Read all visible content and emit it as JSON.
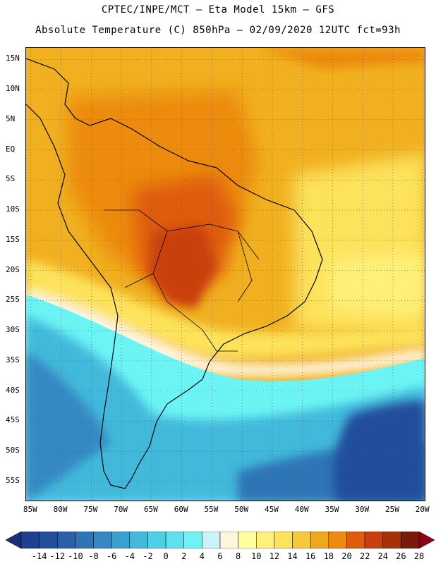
{
  "header": {
    "line1": "CPTEC/INPE/MCT –  Eta Model 15km – GFS",
    "line2": "Absolute Temperature (C) 850hPa – 02/09/2020 12UTC fct=93h"
  },
  "map": {
    "lat_labels": [
      "15N",
      "10N",
      "5N",
      "EQ",
      "5S",
      "10S",
      "15S",
      "20S",
      "25S",
      "30S",
      "35S",
      "40S",
      "45S",
      "50S",
      "55S"
    ],
    "lon_labels": [
      "85W",
      "80W",
      "75W",
      "70W",
      "65W",
      "60W",
      "55W",
      "50W",
      "45W",
      "40W",
      "35W",
      "30W",
      "25W",
      "20W"
    ],
    "lat_values": [
      15,
      10,
      5,
      0,
      -5,
      -10,
      -15,
      -20,
      -25,
      -30,
      -35,
      -40,
      -45,
      -50,
      -55
    ],
    "lon_values": [
      -85,
      -80,
      -75,
      -70,
      -65,
      -60,
      -55,
      -50,
      -45,
      -40,
      -35,
      -30,
      -25,
      -20
    ],
    "temperature_zones": [
      {
        "name": "cold-southwest",
        "value_c": -8
      },
      {
        "name": "cool-southern-ocean",
        "value_c": 0
      },
      {
        "name": "cold-deep-south",
        "value_c": -12
      },
      {
        "name": "mild-frontal-band",
        "value_c": 6
      },
      {
        "name": "warm-north",
        "value_c": 18
      },
      {
        "name": "warm-interior",
        "value_c": 20
      },
      {
        "name": "hot-core",
        "value_c": 24
      }
    ]
  },
  "colorbar": {
    "labels": [
      "-14",
      "-12",
      "-10",
      "-8",
      "-6",
      "-4",
      "-2",
      "0",
      "2",
      "4",
      "6",
      "8",
      "10",
      "12",
      "14",
      "16",
      "18",
      "20",
      "22",
      "24",
      "26",
      "28"
    ],
    "colors": [
      "#1f3f91",
      "#244d9c",
      "#2b5fa8",
      "#2f74b5",
      "#3589c2",
      "#3aa1cf",
      "#42b9db",
      "#4fcfe6",
      "#5fe0ee",
      "#6cf4f4",
      "#c8f4f8",
      "#fff4dc",
      "#ffffa0",
      "#fff07a",
      "#fde25c",
      "#f7c83e",
      "#f0a818",
      "#ec8b10",
      "#df5c0e",
      "#c9400c",
      "#a6300a",
      "#7a1a08"
    ],
    "low_arrow_color": "#1a2f78",
    "high_arrow_color": "#8c001a"
  }
}
